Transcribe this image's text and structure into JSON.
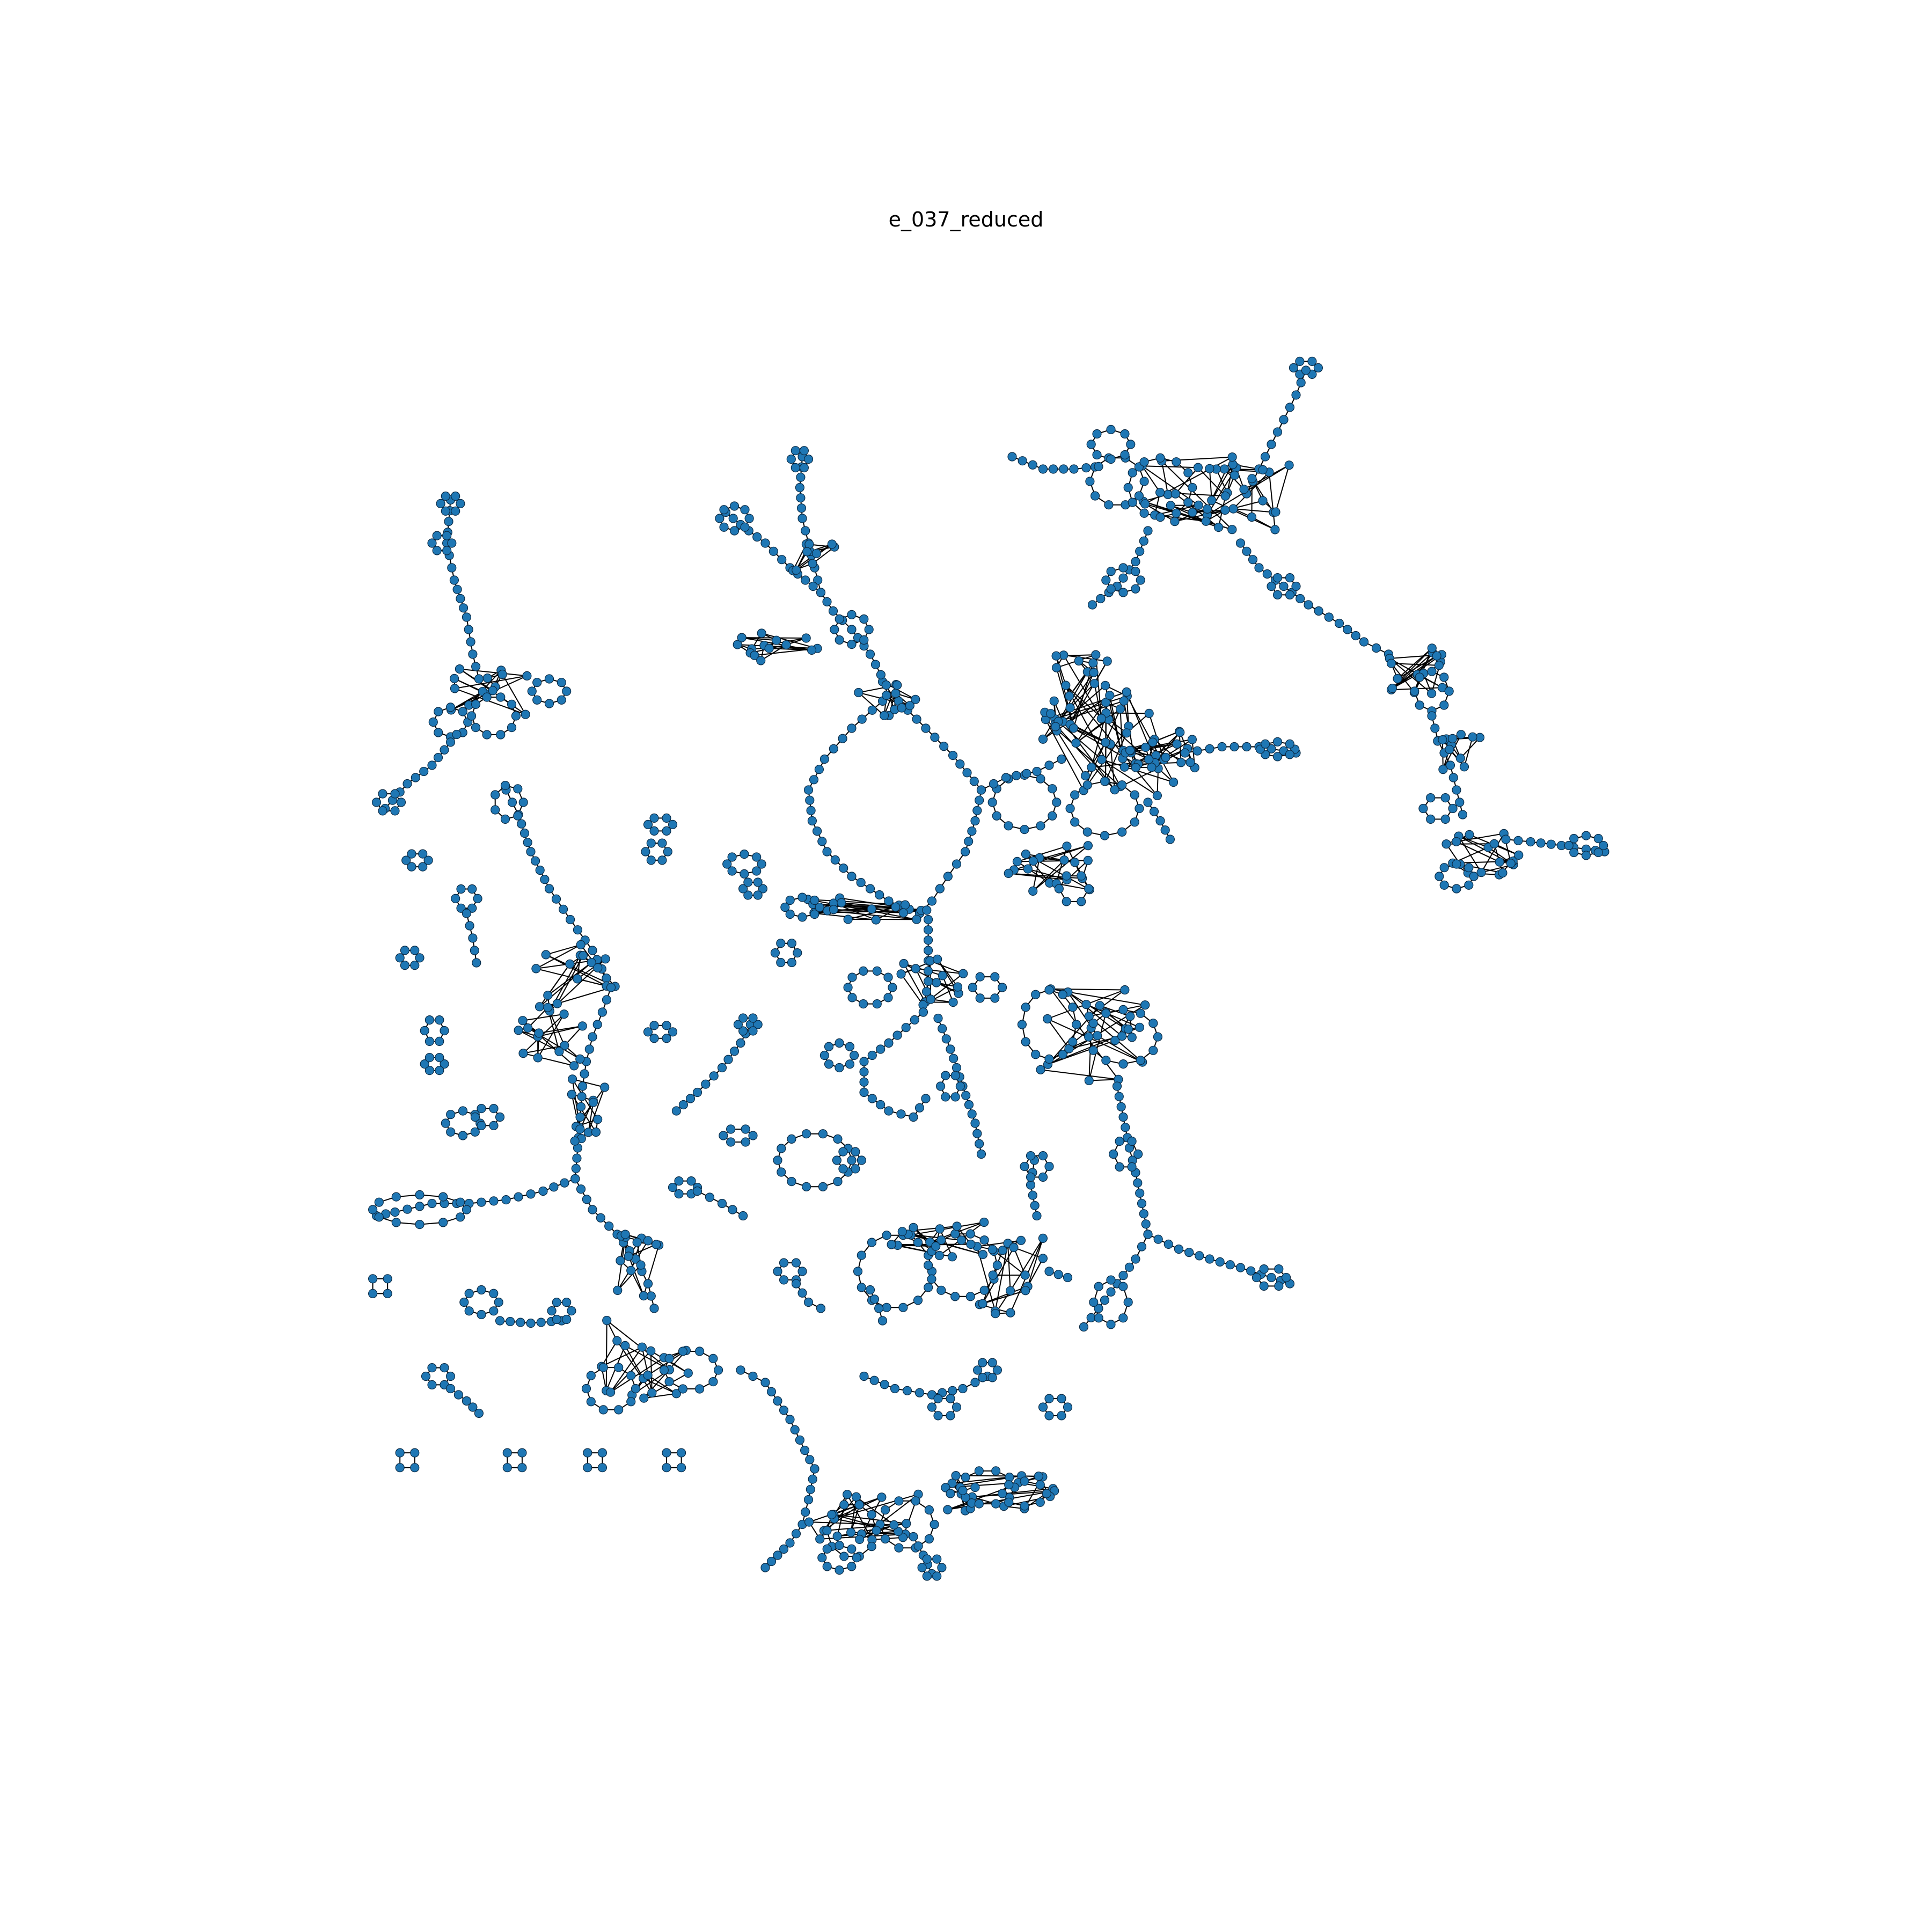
{
  "figure": {
    "title": "e_037_reduced"
  },
  "graph": {
    "node_color": "#1f77b4",
    "node_edge_color": "#0b2a44",
    "edge_color": "#000000"
  }
}
